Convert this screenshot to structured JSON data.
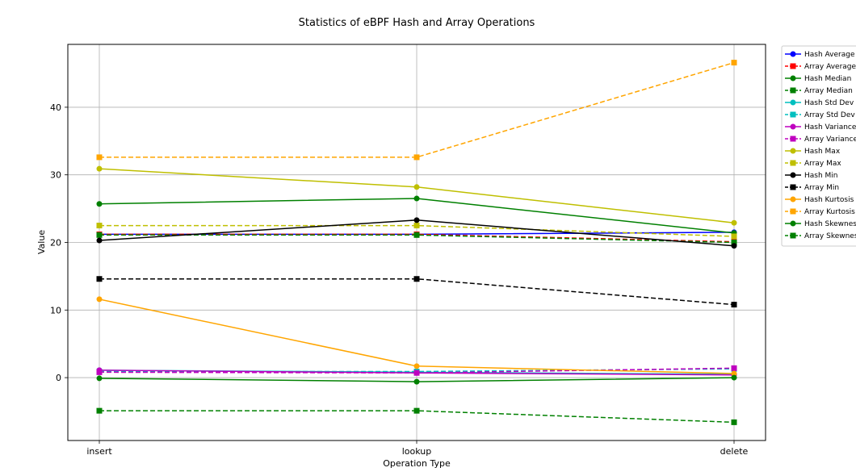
{
  "chart_data": {
    "type": "line",
    "title": "Statistics of eBPF Hash and Array Operations",
    "xlabel": "Operation Type",
    "ylabel": "Value",
    "categories": [
      "insert",
      "lookup",
      "delete"
    ],
    "ylim": [
      -9.3,
      49.3
    ],
    "yticks": [
      0,
      10,
      20,
      30,
      40
    ],
    "grid": true,
    "legend_position": "outside-right",
    "series": [
      {
        "name": "Hash Average",
        "values": [
          21.2,
          21.2,
          21.5
        ],
        "color": "#0000ff",
        "marker": "circle",
        "dash": false
      },
      {
        "name": "Array Average",
        "values": [
          21.2,
          21.2,
          20.1
        ],
        "color": "#ff0000",
        "marker": "square",
        "dash": true
      },
      {
        "name": "Hash Median",
        "values": [
          25.7,
          26.5,
          21.4
        ],
        "color": "#008000",
        "marker": "circle",
        "dash": false
      },
      {
        "name": "Array Median",
        "values": [
          21.1,
          21.1,
          20.0
        ],
        "color": "#008000",
        "marker": "square",
        "dash": true
      },
      {
        "name": "Hash Std Dev",
        "values": [
          1.1,
          0.8,
          0.5
        ],
        "color": "#00bfbf",
        "marker": "circle",
        "dash": false
      },
      {
        "name": "Array Std Dev",
        "values": [
          0.9,
          0.9,
          1.3
        ],
        "color": "#00bfbf",
        "marker": "square",
        "dash": true
      },
      {
        "name": "Hash Variance",
        "values": [
          1.1,
          0.7,
          0.4
        ],
        "color": "#bf00bf",
        "marker": "circle",
        "dash": false
      },
      {
        "name": "Array Variance",
        "values": [
          0.8,
          0.7,
          1.4
        ],
        "color": "#bf00bf",
        "marker": "square",
        "dash": true
      },
      {
        "name": "Hash Max",
        "values": [
          30.9,
          28.2,
          22.9
        ],
        "color": "#bfbf00",
        "marker": "circle",
        "dash": false
      },
      {
        "name": "Array Max",
        "values": [
          22.5,
          22.5,
          20.9
        ],
        "color": "#bfbf00",
        "marker": "square",
        "dash": true
      },
      {
        "name": "Hash Min",
        "values": [
          20.3,
          23.3,
          19.5
        ],
        "color": "#000000",
        "marker": "circle",
        "dash": false
      },
      {
        "name": "Array Min",
        "values": [
          14.6,
          14.6,
          10.8
        ],
        "color": "#000000",
        "marker": "square",
        "dash": true
      },
      {
        "name": "Hash Kurtosis",
        "values": [
          11.6,
          1.7,
          0.6
        ],
        "color": "#ffa500",
        "marker": "circle",
        "dash": false
      },
      {
        "name": "Array Kurtosis",
        "values": [
          32.6,
          32.6,
          46.6
        ],
        "color": "#ffa500",
        "marker": "square",
        "dash": true
      },
      {
        "name": "Hash Skewness",
        "values": [
          -0.1,
          -0.6,
          0.0
        ],
        "color": "#008000",
        "marker": "circle",
        "dash": false
      },
      {
        "name": "Array Skewness",
        "values": [
          -4.9,
          -4.9,
          -6.6
        ],
        "color": "#008000",
        "marker": "square",
        "dash": true
      }
    ]
  }
}
